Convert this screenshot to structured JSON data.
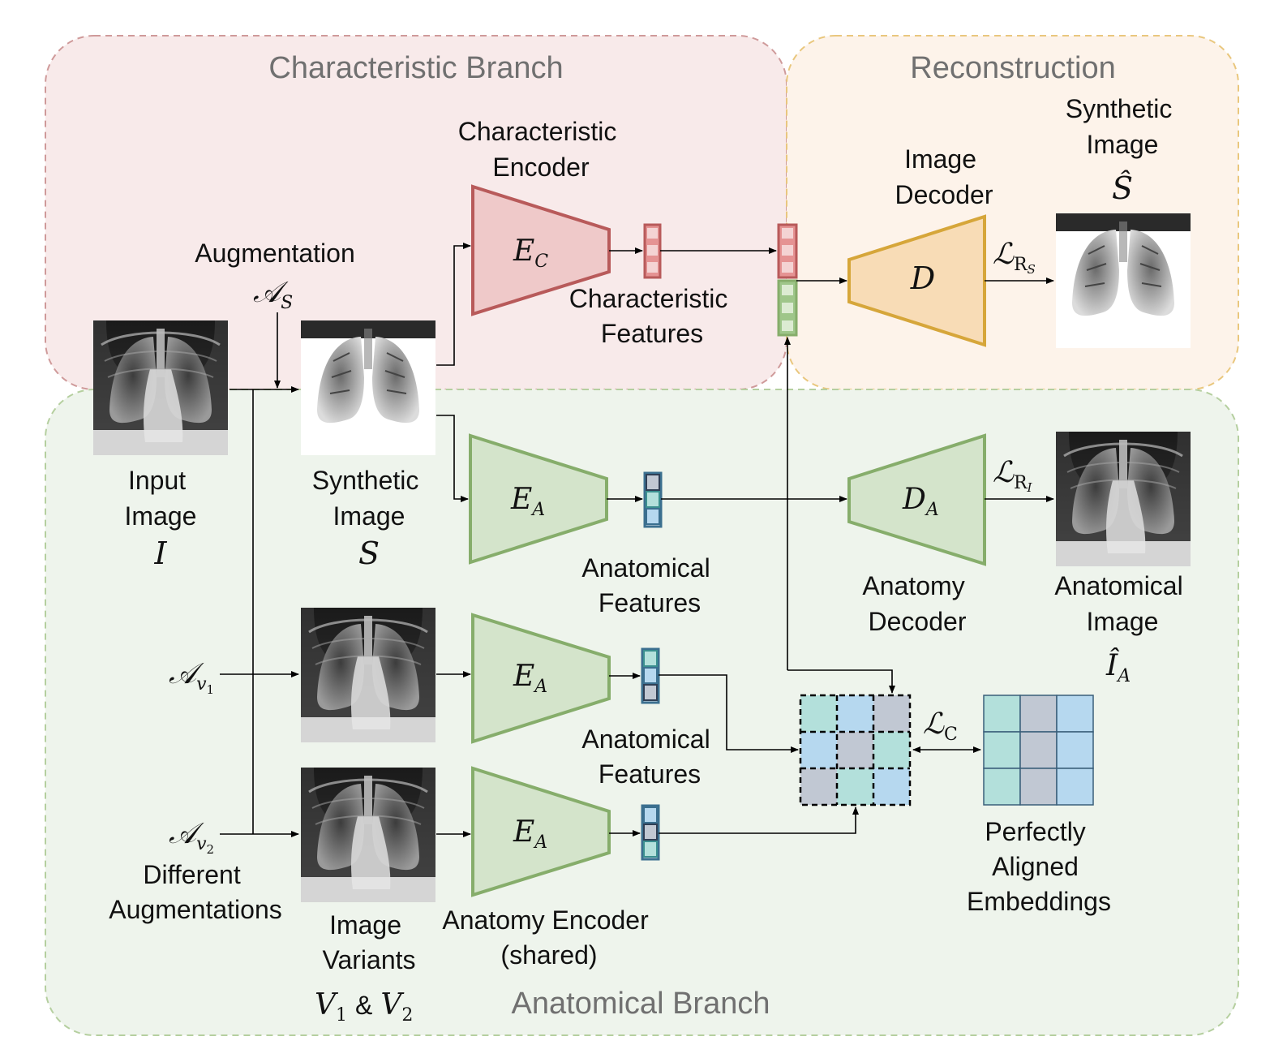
{
  "regions": {
    "characteristic": "Characteristic Branch",
    "reconstruction": "Reconstruction",
    "anatomical": "Anatomical Branch"
  },
  "labels": {
    "augmentation": "Augmentation",
    "input_image": [
      "Input",
      "Image"
    ],
    "synthetic_image": [
      "Synthetic",
      "Image"
    ],
    "char_encoder": [
      "Characteristic",
      "Encoder"
    ],
    "char_features": [
      "Characteristic",
      "Features"
    ],
    "image_decoder": [
      "Image",
      "Decoder"
    ],
    "synthetic_image_out": [
      "Synthetic",
      "Image"
    ],
    "anat_features_1": [
      "Anatomical",
      "Features"
    ],
    "anat_features_2": [
      "Anatomical",
      "Features"
    ],
    "anatomy_decoder": [
      "Anatomy",
      "Decoder"
    ],
    "anatomical_image": [
      "Anatomical",
      "Image"
    ],
    "different_augmentations": [
      "Different",
      "Augmentations"
    ],
    "image_variants": [
      "Image",
      "Variants"
    ],
    "anatomy_encoder": [
      "Anatomy Encoder",
      "(shared)"
    ],
    "perfectly_aligned": [
      "Perfectly",
      "Aligned",
      "Embeddings"
    ]
  },
  "symbols": {
    "I": "I",
    "S": "S",
    "A_S": "𝒜",
    "A_S_sub": "S",
    "A_v1": "𝒜",
    "A_v1_sub": "v",
    "A_v1_subsub": "1",
    "A_v2": "𝒜",
    "A_v2_sub": "v",
    "A_v2_subsub": "2",
    "E_C": "E",
    "E_C_sub": "C",
    "E_A": "E",
    "E_A_sub": "A",
    "D": "D",
    "D_A": "D",
    "D_A_sub": "A",
    "S_hat": "Ŝ",
    "I_hat": "Î",
    "I_hat_sub": "A",
    "L_RS": "ℒ",
    "L_RS_sub": "R",
    "L_RS_subsub": "S",
    "L_RI": "ℒ",
    "L_RI_sub": "R",
    "L_RI_subsub": "I",
    "L_C": "ℒ",
    "L_C_sub": "C",
    "V1": "V",
    "V1_sub": "1",
    "amp": "&",
    "V2": "V",
    "V2_sub": "2"
  },
  "colors": {
    "char_fill": "#f8eaea",
    "char_border": "#cf9a9a",
    "recon_fill": "#fdf3ea",
    "recon_border": "#e9c77e",
    "anat_fill": "#eef4ec",
    "anat_border": "#b5cf9f",
    "char_enc_fill": "#efc9c9",
    "char_enc_stroke": "#b85a5a",
    "anat_enc_fill": "#d4e4cb",
    "anat_enc_stroke": "#86ad6b",
    "dec_fill": "#f8dcb6",
    "dec_stroke": "#d6a63a",
    "teal": "#b3e0db",
    "blue": "#b6d8ef",
    "slate": "#c1c8d3"
  }
}
